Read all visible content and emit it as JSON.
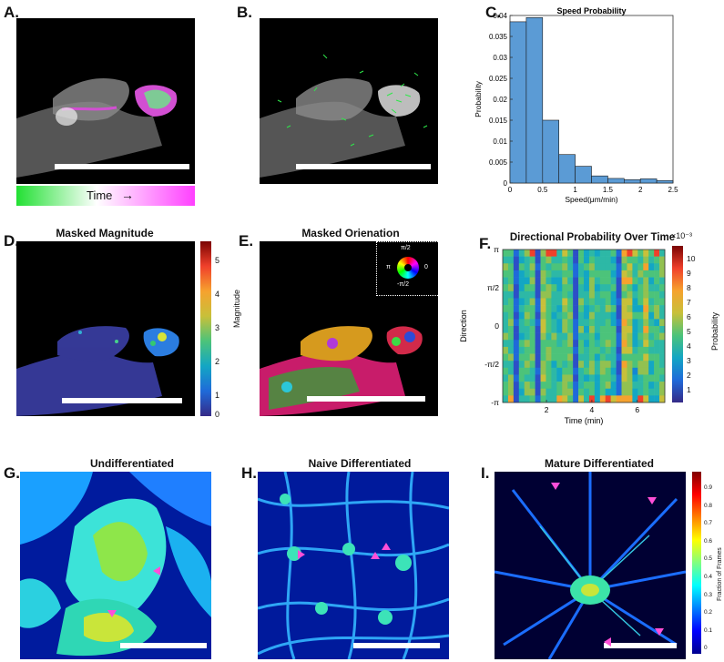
{
  "panels": {
    "A": {
      "label": "A.",
      "time_label": "Time",
      "time_arrow": "→"
    },
    "B": {
      "label": "B."
    },
    "C": {
      "label": "C."
    },
    "D": {
      "label": "D.",
      "title": "Masked Magnitude",
      "colorbar_label": "Magnitude",
      "colorbar_ticks": [
        "5",
        "4",
        "3",
        "2",
        "1",
        "0"
      ]
    },
    "E": {
      "label": "E.",
      "title": "Masked Orienation",
      "wheel_labels": {
        "top": "π/2",
        "right": "0",
        "bottom": "-π/2",
        "left": "π"
      }
    },
    "F": {
      "label": "F.",
      "title": "Directional Probability Over Time",
      "colorbar_label": "Probability",
      "colorbar_exp": "×10⁻³",
      "colorbar_ticks": [
        "10",
        "9",
        "8",
        "7",
        "6",
        "5",
        "4",
        "3",
        "2",
        "1"
      ]
    },
    "G": {
      "label": "G.",
      "title": "Undifferentiated"
    },
    "H": {
      "label": "H.",
      "title": "Naive Differentiated"
    },
    "I": {
      "label": "I.",
      "title": "Mature Differentiated",
      "colorbar_label": "Fraction of Frames",
      "colorbar_ticks": [
        "0.9",
        "0.8",
        "0.7",
        "0.6",
        "0.5",
        "0.4",
        "0.3",
        "0.2",
        "0.1",
        "0"
      ]
    }
  },
  "chart_data": [
    {
      "type": "bar",
      "title": "Speed Probability",
      "xlabel": "Speed(μm/min)",
      "ylabel": "Probability",
      "bin_edges": [
        0,
        0.25,
        0.5,
        0.75,
        1.0,
        1.25,
        1.5,
        1.75,
        2.0,
        2.25,
        2.5
      ],
      "values": [
        0.0385,
        0.0395,
        0.015,
        0.0068,
        0.004,
        0.0017,
        0.0011,
        0.0008,
        0.001,
        0.0006
      ],
      "xlim": [
        0,
        2.5
      ],
      "ylim": [
        0,
        0.04
      ],
      "xticks": [
        "0",
        "0.5",
        "1",
        "1.5",
        "2",
        "2.5"
      ],
      "yticks": [
        "0",
        "0.005",
        "0.01",
        "0.015",
        "0.02",
        "0.025",
        "0.03",
        "0.035",
        "0.04"
      ],
      "color": "#5b9bd5"
    },
    {
      "type": "heatmap",
      "title": "Directional Probability Over Time",
      "xlabel": "Time (min)",
      "ylabel": "Direction",
      "xticks": [
        "2",
        "4",
        "6"
      ],
      "yticks": [
        "π",
        "π/2",
        "0",
        "-π/2",
        "-π"
      ],
      "colorbar_range": [
        0.5,
        10.5
      ]
    }
  ],
  "colors": {
    "bar_fill": "#5b9bd5",
    "arrowhead": "#ff4fd8",
    "time_green": "#22e033",
    "time_magenta": "#ff40ff"
  }
}
